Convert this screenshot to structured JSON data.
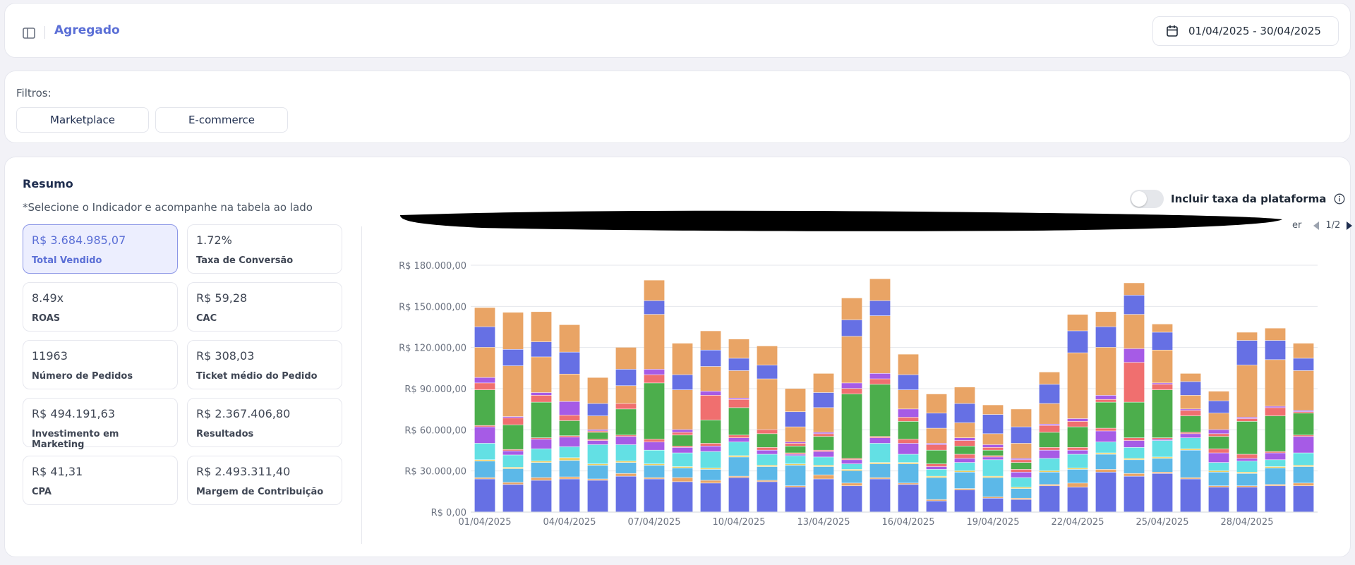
{
  "header": {
    "title": "Agregado",
    "date_range": "01/04/2025 - 30/04/2025"
  },
  "filters": {
    "label": "Filtros:",
    "buttons": [
      "Marketplace",
      "E-commerce"
    ]
  },
  "summary": {
    "title": "Resumo",
    "subtitle": "*Selecione o Indicador e acompanhe na tabela ao lado",
    "metrics": [
      {
        "value": "R$ 3.684.985,07",
        "label": "Total Vendido"
      },
      {
        "value": "1.72%",
        "label": "Taxa de Conversão"
      },
      {
        "value": "8.49x",
        "label": "ROAS"
      },
      {
        "value": "R$ 59,28",
        "label": "CAC"
      },
      {
        "value": "11963",
        "label": "Número de Pedidos"
      },
      {
        "value": "R$ 308,03",
        "label": "Ticket médio do Pedido"
      },
      {
        "value": "R$ 494.191,63",
        "label": "Investimento em Marketing"
      },
      {
        "value": "R$ 2.367.406,80",
        "label": "Resultados"
      },
      {
        "value": "R$ 41,31",
        "label": "CPA"
      },
      {
        "value": "R$ 2.493.311,40",
        "label": "Margem de Contribuição"
      }
    ],
    "toggle_label": "Incluir taxa da plataforma",
    "toggle_on": false,
    "pager": "1/2",
    "legend_fragment": "er"
  },
  "chart_data": {
    "type": "bar",
    "stacked": true,
    "ylim": [
      0,
      180000
    ],
    "y_ticks": [
      "R$ 0,00",
      "R$ 30.000,00",
      "R$ 60.000,00",
      "R$ 90.000,00",
      "R$ 120.000,00",
      "R$ 150.000,00",
      "R$ 180.000,00"
    ],
    "x_tick_labels": [
      "01/04/2025",
      "04/04/2025",
      "07/04/2025",
      "10/04/2025",
      "13/04/2025",
      "16/04/2025",
      "19/04/2025",
      "22/04/2025",
      "25/04/2025",
      "28/04/2025"
    ],
    "categories": [
      "01/04/2025",
      "02/04/2025",
      "03/04/2025",
      "04/04/2025",
      "05/04/2025",
      "06/04/2025",
      "07/04/2025",
      "08/04/2025",
      "09/04/2025",
      "10/04/2025",
      "11/04/2025",
      "12/04/2025",
      "13/04/2025",
      "14/04/2025",
      "15/04/2025",
      "16/04/2025",
      "17/04/2025",
      "18/04/2025",
      "19/04/2025",
      "20/04/2025",
      "21/04/2025",
      "22/04/2025",
      "23/04/2025",
      "24/04/2025",
      "25/04/2025",
      "26/04/2025",
      "27/04/2025",
      "28/04/2025",
      "29/04/2025",
      "30/04/2025"
    ],
    "series": [
      {
        "color": "#6670e4",
        "values": [
          24000,
          20000,
          23000,
          24000,
          23000,
          26000,
          24000,
          22000,
          21000,
          25000,
          22000,
          18000,
          24000,
          19000,
          24000,
          20000,
          8000,
          16000,
          10000,
          9000,
          19000,
          18000,
          29000,
          26000,
          28000,
          24000,
          18000,
          18000,
          19000,
          19000
        ]
      },
      {
        "color": "#e9a465",
        "values": [
          1000,
          1500,
          2000,
          1500,
          1000,
          2000,
          1000,
          3000,
          2000,
          1000,
          1000,
          1000,
          3000,
          2000,
          1000,
          1000,
          1000,
          1000,
          1000,
          1000,
          1000,
          3000,
          2000,
          2000,
          1000,
          1000,
          1000,
          1000,
          1000,
          2000
        ]
      },
      {
        "color": "#5cb8e8",
        "values": [
          12000,
          10000,
          11000,
          12000,
          10000,
          8000,
          9000,
          7000,
          8000,
          14000,
          10000,
          15000,
          6000,
          9000,
          10000,
          14000,
          16000,
          12000,
          14000,
          7000,
          9000,
          10000,
          11000,
          10000,
          10000,
          20000,
          10000,
          9000,
          12000,
          12000
        ]
      },
      {
        "color": "#f2cf5f",
        "values": [
          1000,
          1000,
          1000,
          2000,
          1000,
          1000,
          1000,
          1000,
          1000,
          1000,
          1000,
          1000,
          1000,
          1000,
          1000,
          1000,
          1000,
          1000,
          1000,
          1000,
          1000,
          1000,
          1000,
          1000,
          1000,
          1000,
          1000,
          1000,
          1000,
          1000
        ]
      },
      {
        "color": "#63e0e4",
        "values": [
          12000,
          9000,
          9000,
          8000,
          14000,
          12000,
          10000,
          10000,
          12000,
          10000,
          8000,
          6000,
          6000,
          4000,
          14000,
          6000,
          5000,
          6000,
          12000,
          7000,
          9000,
          10000,
          8000,
          8000,
          12000,
          8000,
          6000,
          8000,
          5000,
          9000
        ]
      },
      {
        "color": "#a65be6",
        "values": [
          12000,
          3000,
          7000,
          7000,
          3000,
          6000,
          6000,
          4000,
          4000,
          3000,
          3000,
          1000,
          4000,
          3000,
          4000,
          8000,
          2000,
          3000,
          2000,
          4000,
          6000,
          3000,
          8000,
          5000,
          1000,
          3000,
          7000,
          2000,
          5000,
          12000
        ]
      },
      {
        "color": "#f06f6f",
        "values": [
          1000,
          1000,
          1000,
          1000,
          1000,
          1000,
          2000,
          1000,
          2000,
          2000,
          2000,
          1000,
          1000,
          1000,
          1000,
          3000,
          2000,
          3000,
          1000,
          2000,
          2000,
          2000,
          2000,
          2000,
          1000,
          1000,
          3000,
          3000,
          1000,
          1000
        ]
      },
      {
        "color": "#4cae4c",
        "values": [
          26000,
          18000,
          26000,
          11000,
          5000,
          19000,
          41000,
          8000,
          17000,
          20000,
          10000,
          5000,
          10000,
          47000,
          38000,
          13000,
          10000,
          6000,
          4000,
          5000,
          11000,
          15000,
          19000,
          26000,
          35000,
          12000,
          9000,
          24000,
          26000,
          16000
        ]
      },
      {
        "color": "#f06f6f",
        "values": [
          5000,
          5000,
          5000,
          4000,
          1000,
          4000,
          6000,
          2000,
          18000,
          6000,
          3000,
          2000,
          2000,
          4000,
          4000,
          3000,
          4000,
          4000,
          2000,
          2000,
          5000,
          4000,
          2000,
          29000,
          4000,
          4000,
          2000,
          2000,
          6000,
          1000
        ]
      },
      {
        "color": "#a65be6",
        "values": [
          4000,
          1000,
          2000,
          10000,
          1000,
          0,
          4000,
          2000,
          3000,
          1000,
          0,
          1000,
          1000,
          4000,
          4000,
          6000,
          1000,
          2000,
          2000,
          1000,
          1000,
          2000,
          3000,
          10000,
          1000,
          1000,
          3000,
          1000,
          1000,
          1000
        ]
      },
      {
        "color": "#e9a465",
        "values": [
          22000,
          37000,
          26000,
          20000,
          10000,
          13000,
          40000,
          29000,
          18000,
          20000,
          37000,
          11000,
          18000,
          34000,
          42000,
          14000,
          11000,
          11000,
          8000,
          11000,
          15000,
          48000,
          35000,
          25000,
          24000,
          10000,
          12000,
          38000,
          34000,
          29000
        ]
      },
      {
        "color": "#6670e4",
        "values": [
          15000,
          12000,
          11000,
          16000,
          9000,
          12000,
          10000,
          11000,
          12000,
          9000,
          10000,
          11000,
          11000,
          12000,
          11000,
          11000,
          11000,
          14000,
          14000,
          12000,
          14000,
          16000,
          15000,
          14000,
          13000,
          10000,
          9000,
          18000,
          14000,
          9000
        ]
      },
      {
        "color": "#e9a465",
        "values": [
          14000,
          27000,
          22000,
          20000,
          19000,
          16000,
          15000,
          23000,
          14000,
          14000,
          14000,
          17000,
          14000,
          16000,
          16000,
          15000,
          14000,
          12000,
          7000,
          13000,
          9000,
          12000,
          11000,
          9000,
          6000,
          6000,
          7000,
          6000,
          9000,
          11000
        ]
      }
    ]
  }
}
